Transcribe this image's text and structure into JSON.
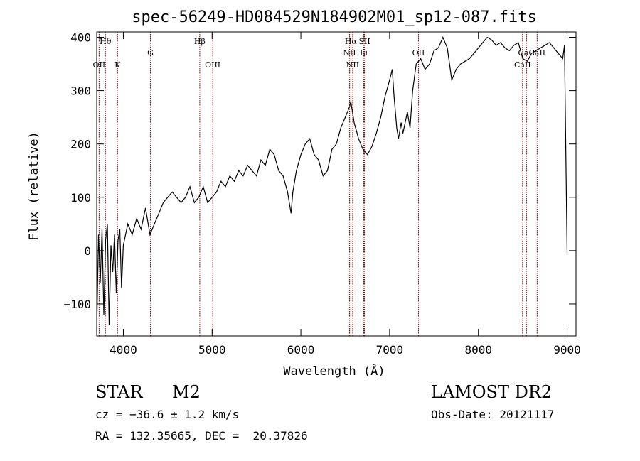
{
  "chart_data": {
    "type": "line",
    "title": "spec-56249-HD084529N184902M01_sp12-087.fits",
    "xlabel": "Wavelength (Å)",
    "ylabel": "Flux (relative)",
    "xlim": [
      3700,
      9100
    ],
    "ylim": [
      -160,
      410
    ],
    "x_ticks": [
      4000,
      5000,
      6000,
      7000,
      8000,
      9000
    ],
    "y_ticks": [
      -100,
      0,
      100,
      200,
      300,
      400
    ],
    "grid": false,
    "colors": {
      "line": "#000000",
      "marker": "#8b0000"
    },
    "series": [
      {
        "x": [
          3700,
          3720,
          3740,
          3760,
          3780,
          3800,
          3820,
          3840,
          3860,
          3880,
          3900,
          3920,
          3940,
          3960,
          3980,
          4000,
          4050,
          4100,
          4150,
          4200,
          4250,
          4300,
          4350,
          4400,
          4450,
          4500,
          4550,
          4600,
          4650,
          4700,
          4750,
          4800,
          4850,
          4900,
          4950,
          5000,
          5050,
          5100,
          5150,
          5200,
          5250,
          5300,
          5350,
          5400,
          5450,
          5500,
          5550,
          5600,
          5650,
          5700,
          5750,
          5800,
          5850,
          5870,
          5890,
          5910,
          5950,
          6000,
          6050,
          6100,
          6150,
          6200,
          6250,
          6300,
          6350,
          6400,
          6450,
          6500,
          6550,
          6563,
          6600,
          6650,
          6700,
          6750,
          6800,
          6850,
          6900,
          6950,
          7000,
          7030,
          7050,
          7080,
          7100,
          7130,
          7150,
          7200,
          7230,
          7260,
          7300,
          7350,
          7400,
          7450,
          7500,
          7550,
          7600,
          7650,
          7700,
          7750,
          7800,
          7850,
          7900,
          7950,
          8000,
          8050,
          8100,
          8150,
          8200,
          8250,
          8300,
          8350,
          8400,
          8450,
          8500,
          8550,
          8600,
          8650,
          8700,
          8750,
          8800,
          8850,
          8900,
          8950,
          8970,
          8990,
          9000
        ],
        "y": [
          -150,
          30,
          -60,
          40,
          -120,
          20,
          50,
          -140,
          10,
          -40,
          30,
          -80,
          20,
          40,
          -70,
          10,
          50,
          30,
          60,
          40,
          80,
          30,
          50,
          70,
          90,
          100,
          110,
          100,
          90,
          100,
          120,
          90,
          100,
          120,
          90,
          100,
          110,
          130,
          120,
          140,
          130,
          150,
          140,
          160,
          150,
          140,
          170,
          160,
          190,
          180,
          150,
          140,
          110,
          90,
          70,
          110,
          150,
          180,
          200,
          210,
          180,
          170,
          140,
          150,
          190,
          200,
          230,
          250,
          270,
          280,
          240,
          210,
          190,
          180,
          195,
          220,
          250,
          290,
          320,
          340,
          290,
          230,
          210,
          240,
          220,
          260,
          230,
          300,
          350,
          360,
          340,
          350,
          375,
          380,
          400,
          380,
          320,
          340,
          350,
          355,
          360,
          370,
          380,
          390,
          400,
          395,
          385,
          390,
          380,
          375,
          385,
          390,
          360,
          355,
          370,
          375,
          380,
          385,
          390,
          380,
          370,
          360,
          385,
          120,
          -5
        ]
      }
    ],
    "line_markers": [
      {
        "label": "Hθ",
        "x": 3798,
        "row": 1
      },
      {
        "label": "OII",
        "x": 3727,
        "row": 2
      },
      {
        "label": "K",
        "x": 3934,
        "row": 2
      },
      {
        "label": "G",
        "x": 4305,
        "row": 1.5
      },
      {
        "label": "Hβ",
        "x": 4861,
        "row": 1
      },
      {
        "label": "OIII",
        "x": 5007,
        "row": 2
      },
      {
        "label": "Hα",
        "x": 6563,
        "row": 1
      },
      {
        "label": "SII",
        "x": 6717,
        "row": 1
      },
      {
        "label": "NII",
        "x": 6548,
        "row": 1.5
      },
      {
        "label": "Li",
        "x": 6708,
        "row": 1.5
      },
      {
        "label": "NII",
        "x": 6584,
        "row": 2
      },
      {
        "label": "OII",
        "x": 7325,
        "row": 1.5
      },
      {
        "label": "CaII",
        "x": 8498,
        "row": 2
      },
      {
        "label": "CaII",
        "x": 8542,
        "row": 1.5
      },
      {
        "label": "CaII",
        "x": 8662,
        "row": 1.5
      }
    ]
  },
  "info": {
    "object_class": "STAR",
    "subclass": "M2",
    "survey": "LAMOST DR2",
    "redshift": "cz = −36.6 ± 1.2 km/s",
    "obs_date": "Obs-Date: 20121117",
    "coords": "RA = 132.35665, DEC =  20.37826"
  }
}
